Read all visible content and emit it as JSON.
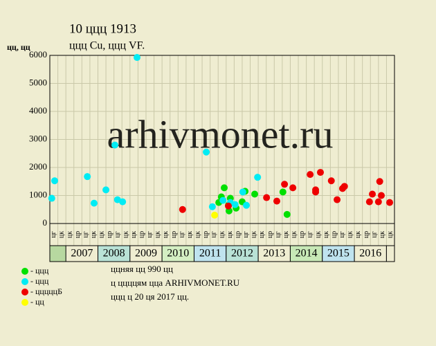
{
  "chart_data": {
    "type": "scatter",
    "title": "10 ццц 1913",
    "subtitle": "ццц Cu, ццц VF.",
    "y_label": "цц, цц",
    "watermark": "arhivmonet.ru",
    "xlim": [
      2006.5,
      2017.25
    ],
    "ylim": [
      0,
      6000
    ],
    "yticks": [
      0,
      1000,
      2000,
      3000,
      4000,
      5000,
      6000
    ],
    "grid": true,
    "years": [
      2007,
      2008,
      2009,
      2010,
      2011,
      2012,
      2013,
      2014,
      2015,
      2016
    ],
    "quarter_labels": [
      "цг",
      "цк",
      "цк",
      "цр",
      "цг",
      "цк",
      "цк",
      "цр",
      "цг",
      "цк",
      "цк",
      "цр",
      "цг",
      "цк",
      "цк",
      "цр",
      "цг",
      "цк",
      "цк",
      "цр",
      "цг",
      "цк",
      "цк",
      "цр",
      "цг",
      "цк",
      "цк",
      "цр",
      "цг",
      "цк",
      "цк",
      "цр",
      "цг",
      "цк",
      "цк",
      "цр",
      "цг",
      "цк",
      "цк",
      "цр",
      "цг",
      "цк",
      "цк"
    ],
    "series": [
      {
        "name": "- ццц",
        "color": "#00e000",
        "x": [
          2011.77,
          2011.85,
          2011.94,
          2012.07,
          2012.09,
          2012.13,
          2012.31,
          2012.5,
          2012.59,
          2012.89,
          2013.77,
          2013.9
        ],
        "values": [
          750,
          950,
          1275,
          650,
          450,
          900,
          550,
          775,
          1150,
          1050,
          1125,
          325
        ]
      },
      {
        "name": "- ццц",
        "color": "#00ecf4",
        "x": [
          2006.56,
          2006.65,
          2007.67,
          2007.88,
          2008.25,
          2008.53,
          2008.61,
          2008.77,
          2009.22,
          2011.38,
          2011.57,
          2011.9,
          2012.13,
          2012.28,
          2012.52,
          2012.63,
          2012.98
        ],
        "values": [
          900,
          1525,
          1675,
          725,
          1200,
          2800,
          850,
          775,
          5925,
          2550,
          600,
          825,
          750,
          675,
          1125,
          650,
          1650
        ]
      },
      {
        "name": "- цццццБ",
        "color": "#ee0000",
        "x": [
          2010.64,
          2012.07,
          2013.26,
          2013.58,
          2013.82,
          2014.08,
          2014.62,
          2014.79,
          2014.79,
          2014.94,
          2015.28,
          2015.46,
          2015.63,
          2015.69,
          2016.47,
          2016.56,
          2016.75,
          2016.79,
          2016.84,
          2017.1
        ],
        "values": [
          500,
          625,
          925,
          800,
          1400,
          1275,
          1750,
          1200,
          1125,
          1825,
          1525,
          850,
          1250,
          1325,
          775,
          1050,
          775,
          1500,
          1000,
          750
        ]
      },
      {
        "name": "- цц",
        "color": "#ffff00",
        "x": [
          2011.64
        ],
        "values": [
          300
        ]
      }
    ],
    "notes": [
      "ццняя цц 990 цц",
      "ц ццццям цца ARHIVMONET.RU",
      "ццц ц 20 ця 2017 цц."
    ]
  }
}
